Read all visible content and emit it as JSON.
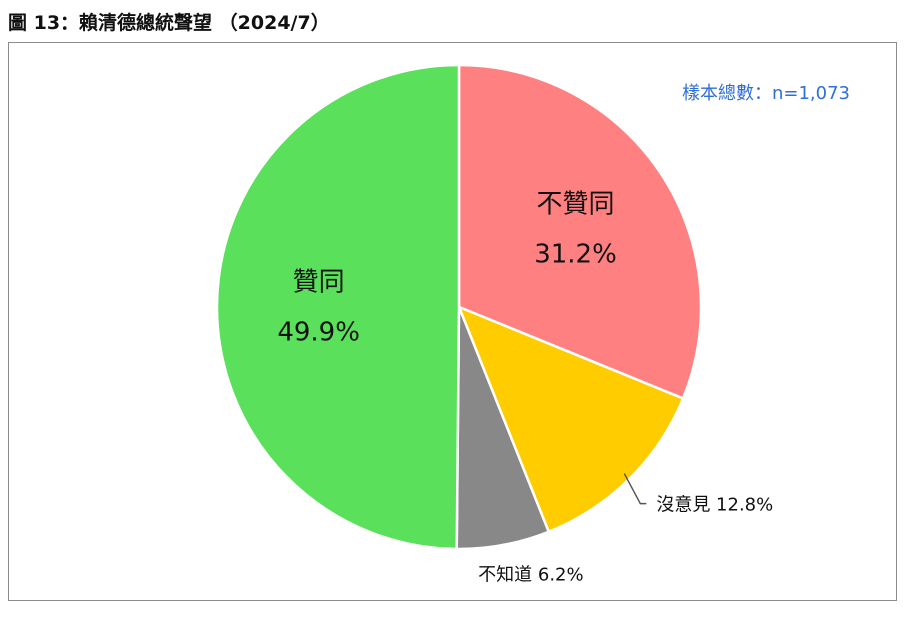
{
  "figure": {
    "title": "圖 13：賴清德總統聲望 （2024/7）",
    "sample_note": "樣本總數：n=1,073"
  },
  "chart_data": {
    "type": "pie",
    "title": "圖 13：賴清德總統聲望 （2024/7）",
    "annotation": "樣本總數：n=1,073",
    "slices": [
      {
        "label": "不贊同",
        "value": 31.2,
        "display": "31.2%",
        "color": "#ff8080",
        "label_style": "inside"
      },
      {
        "label": "沒意見",
        "value": 12.8,
        "display": "12.8%",
        "color": "#ffcc00",
        "label_style": "outside-leader"
      },
      {
        "label": "不知道",
        "value": 6.2,
        "display": "6.2%",
        "color": "#888888",
        "label_style": "outside"
      },
      {
        "label": "贊同",
        "value": 49.9,
        "display": "49.9%",
        "color": "#5ae05a",
        "label_style": "inside"
      }
    ],
    "start": "12 o'clock",
    "direction": "clockwise",
    "legend": "none"
  }
}
